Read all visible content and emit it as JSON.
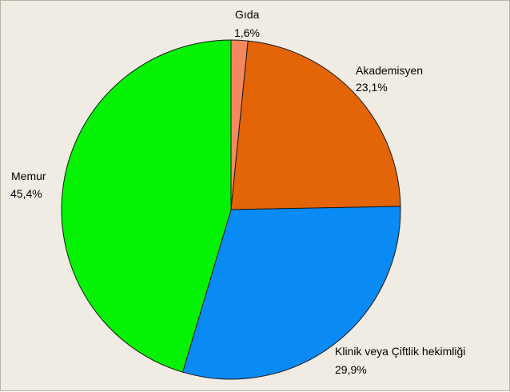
{
  "chart_data": {
    "type": "pie",
    "title": "",
    "slices": [
      {
        "label": "Gıda",
        "value": 1.6,
        "value_label": "1,6%",
        "color": "#f4895f"
      },
      {
        "label": "Akademisyen",
        "value": 23.1,
        "value_label": "23,1%",
        "color": "#e46408"
      },
      {
        "label": "Klinik veya Çiftlik hekimliği",
        "value": 29.9,
        "value_label": "29,9%",
        "color": "#0a8af5"
      },
      {
        "label": "Memur",
        "value": 45.4,
        "value_label": "45,4%",
        "color": "#05f205"
      }
    ],
    "start_angle_deg": 0,
    "direction": "clockwise",
    "legend": "none"
  }
}
